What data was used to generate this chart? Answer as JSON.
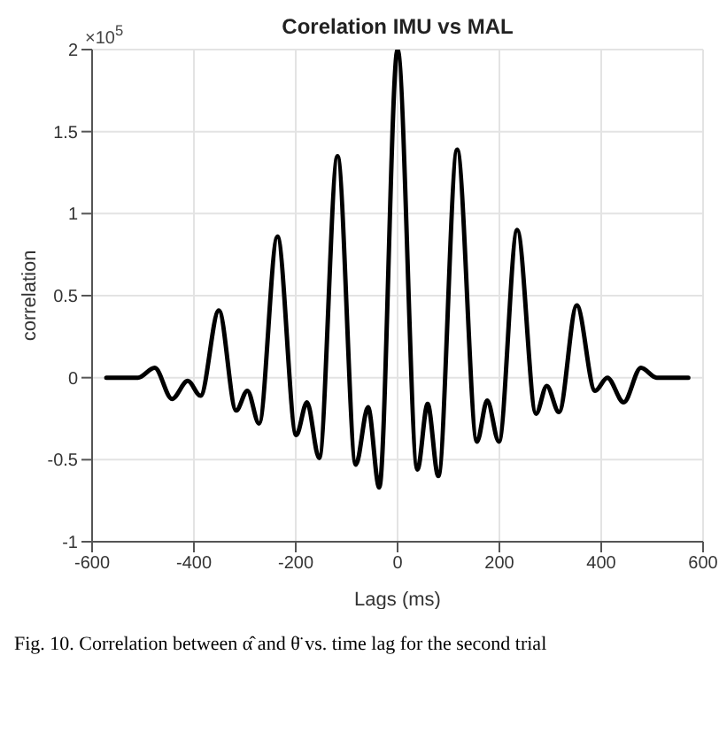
{
  "chart_data": {
    "type": "line",
    "title": "Corelation IMU vs MAL",
    "xlabel": "Lags (ms)",
    "ylabel": "correlation",
    "annotations": [
      "×10$^{5}$",
      "Fig. 10. Correlation between α̂ and θ̈ vs. time lag for the second trial"
    ],
    "x": [
      -572,
      -510,
      -477,
      -443,
      -412,
      -387,
      -351,
      -317,
      -295,
      -272,
      -236,
      -199,
      -178,
      -154,
      -118,
      -82,
      -58,
      -36,
      0,
      39,
      59,
      80,
      117,
      156,
      176,
      199,
      235,
      272,
      293,
      317,
      352,
      388,
      412,
      444,
      478,
      509,
      571
    ],
    "series": [
      {
        "color": "#000000",
        "values": [
          0,
          0,
          0.06,
          -0.13,
          -0.02,
          -0.11,
          0.41,
          -0.2,
          -0.08,
          -0.28,
          0.86,
          -0.35,
          -0.15,
          -0.49,
          1.35,
          -0.53,
          -0.18,
          -0.67,
          2.0,
          -0.56,
          -0.16,
          -0.6,
          1.39,
          -0.39,
          -0.14,
          -0.39,
          0.9,
          -0.22,
          -0.05,
          -0.21,
          0.44,
          -0.08,
          0,
          -0.15,
          0.06,
          0,
          0
        ]
      }
    ],
    "xlim": [
      -600,
      600
    ],
    "ylim": [
      -1,
      2
    ],
    "xticks": [
      -600,
      -400,
      -200,
      0,
      200,
      400,
      600
    ],
    "yticks": [
      -1,
      -0.5,
      0,
      0.5,
      1,
      1.5,
      2
    ],
    "grid": true
  }
}
